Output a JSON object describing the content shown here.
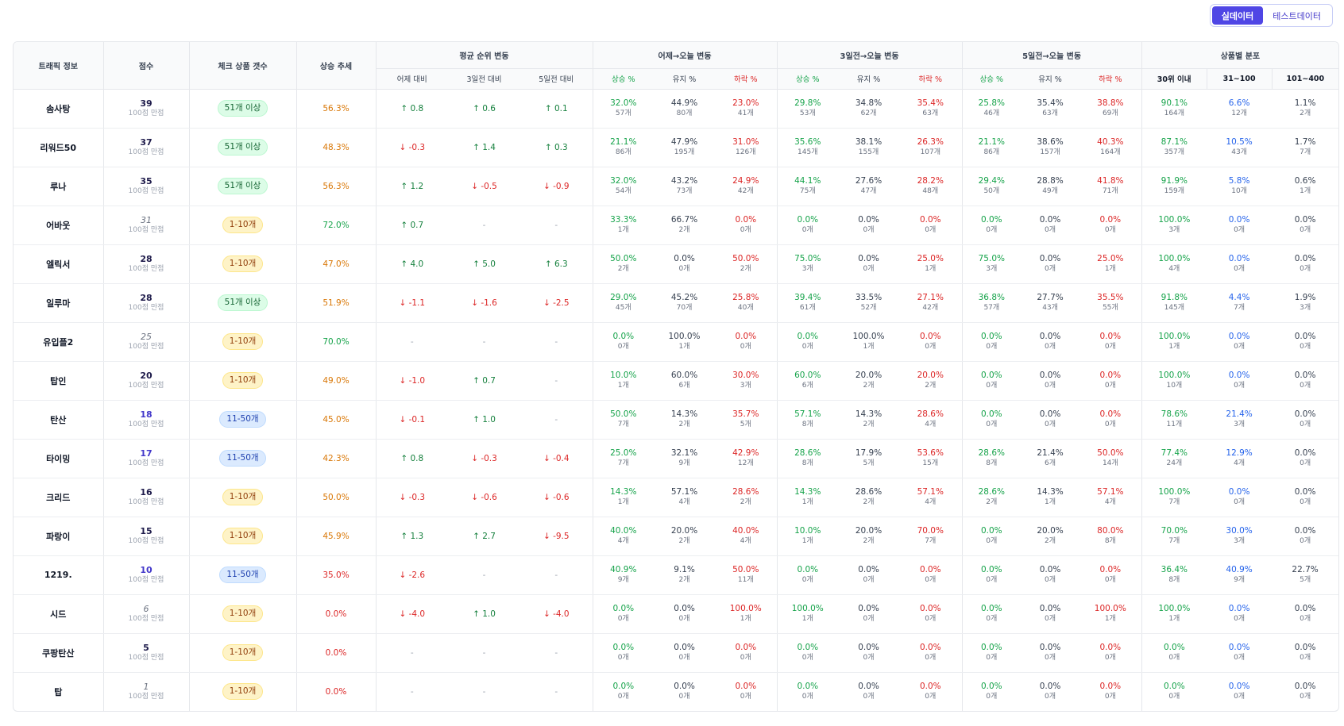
{
  "toggle": {
    "real_label": "실데이터",
    "test_label": "테스트데이터"
  },
  "headers": {
    "traffic": "트래픽 정보",
    "score": "점수",
    "check_count": "체크 상품 갯수",
    "trend": "상승 추세",
    "avg_rank": "평균 순위 변동",
    "yesterday_today": "어제→오늘 변동",
    "d3_today": "3일전→오늘 변동",
    "d5_today": "5일전→오늘 변동",
    "dist": "상품별 분포",
    "vs_yesterday": "어제 대비",
    "vs_3d": "3일전 대비",
    "vs_5d": "5일전 대비",
    "up_pct": "상승 %",
    "keep_pct": "유지 %",
    "down_pct": "하락 %",
    "within30": "30위 이내",
    "r31_100": "31~100",
    "r101_400": "101~400"
  },
  "score_sub": "100점 만점",
  "colors": {
    "accent": "#4f46e5",
    "up": "#16a34a",
    "down": "#dc2626",
    "trend": "#d97706"
  },
  "rows": [
    {
      "name": "솜사탕",
      "score": "39",
      "score_style": "navy",
      "count": "51개 이상",
      "pill": "green",
      "trend": "56.3%",
      "trend_color": "orange",
      "r1": "↑ 0.8",
      "r1d": "up",
      "r3": "↑ 0.6",
      "r3d": "up",
      "r5": "↑ 0.1",
      "r5d": "up",
      "y": [
        [
          "32.0%",
          "57개"
        ],
        [
          "44.9%",
          "80개"
        ],
        [
          "23.0%",
          "41개"
        ]
      ],
      "d3": [
        [
          "29.8%",
          "53개"
        ],
        [
          "34.8%",
          "62개"
        ],
        [
          "35.4%",
          "63개"
        ]
      ],
      "d5": [
        [
          "25.8%",
          "46개"
        ],
        [
          "35.4%",
          "63개"
        ],
        [
          "38.8%",
          "69개"
        ]
      ],
      "dist": [
        [
          "90.1%",
          "164개"
        ],
        [
          "6.6%",
          "12개"
        ],
        [
          "1.1%",
          "2개"
        ]
      ]
    },
    {
      "name": "리워드50",
      "score": "37",
      "score_style": "navy",
      "count": "51개 이상",
      "pill": "green",
      "trend": "48.3%",
      "trend_color": "orange",
      "r1": "↓ -0.3",
      "r1d": "dn",
      "r3": "↑ 1.4",
      "r3d": "up",
      "r5": "↑ 0.3",
      "r5d": "up",
      "y": [
        [
          "21.1%",
          "86개"
        ],
        [
          "47.9%",
          "195개"
        ],
        [
          "31.0%",
          "126개"
        ]
      ],
      "d3": [
        [
          "35.6%",
          "145개"
        ],
        [
          "38.1%",
          "155개"
        ],
        [
          "26.3%",
          "107개"
        ]
      ],
      "d5": [
        [
          "21.1%",
          "86개"
        ],
        [
          "38.6%",
          "157개"
        ],
        [
          "40.3%",
          "164개"
        ]
      ],
      "dist": [
        [
          "87.1%",
          "357개"
        ],
        [
          "10.5%",
          "43개"
        ],
        [
          "1.7%",
          "7개"
        ]
      ]
    },
    {
      "name": "루나",
      "score": "35",
      "score_style": "navy",
      "count": "51개 이상",
      "pill": "green",
      "trend": "56.3%",
      "trend_color": "orange",
      "r1": "↑ 1.2",
      "r1d": "up",
      "r3": "↓ -0.5",
      "r3d": "dn",
      "r5": "↓ -0.9",
      "r5d": "dn",
      "y": [
        [
          "32.0%",
          "54개"
        ],
        [
          "43.2%",
          "73개"
        ],
        [
          "24.9%",
          "42개"
        ]
      ],
      "d3": [
        [
          "44.1%",
          "75개"
        ],
        [
          "27.6%",
          "47개"
        ],
        [
          "28.2%",
          "48개"
        ]
      ],
      "d5": [
        [
          "29.4%",
          "50개"
        ],
        [
          "28.8%",
          "49개"
        ],
        [
          "41.8%",
          "71개"
        ]
      ],
      "dist": [
        [
          "91.9%",
          "159개"
        ],
        [
          "5.8%",
          "10개"
        ],
        [
          "0.6%",
          "1개"
        ]
      ]
    },
    {
      "name": "어바웃",
      "score": "31",
      "score_style": "gray",
      "count": "1-10개",
      "pill": "yellow",
      "trend": "72.0%",
      "trend_color": "green",
      "r1": "↑ 0.7",
      "r1d": "up",
      "r3": "-",
      "r3d": "none",
      "r5": "-",
      "r5d": "none",
      "y": [
        [
          "33.3%",
          "1개"
        ],
        [
          "66.7%",
          "2개"
        ],
        [
          "0.0%",
          "0개"
        ]
      ],
      "d3": [
        [
          "0.0%",
          "0개"
        ],
        [
          "0.0%",
          "0개"
        ],
        [
          "0.0%",
          "0개"
        ]
      ],
      "d5": [
        [
          "0.0%",
          "0개"
        ],
        [
          "0.0%",
          "0개"
        ],
        [
          "0.0%",
          "0개"
        ]
      ],
      "dist": [
        [
          "100.0%",
          "3개"
        ],
        [
          "0.0%",
          "0개"
        ],
        [
          "0.0%",
          "0개"
        ]
      ]
    },
    {
      "name": "엘릭서",
      "score": "28",
      "score_style": "navy",
      "count": "1-10개",
      "pill": "yellow",
      "trend": "47.0%",
      "trend_color": "orange",
      "r1": "↑ 4.0",
      "r1d": "up",
      "r3": "↑ 5.0",
      "r3d": "up",
      "r5": "↑ 6.3",
      "r5d": "up",
      "y": [
        [
          "50.0%",
          "2개"
        ],
        [
          "0.0%",
          "0개"
        ],
        [
          "50.0%",
          "2개"
        ]
      ],
      "d3": [
        [
          "75.0%",
          "3개"
        ],
        [
          "0.0%",
          "0개"
        ],
        [
          "25.0%",
          "1개"
        ]
      ],
      "d5": [
        [
          "75.0%",
          "3개"
        ],
        [
          "0.0%",
          "0개"
        ],
        [
          "25.0%",
          "1개"
        ]
      ],
      "dist": [
        [
          "100.0%",
          "4개"
        ],
        [
          "0.0%",
          "0개"
        ],
        [
          "0.0%",
          "0개"
        ]
      ]
    },
    {
      "name": "일루마",
      "score": "28",
      "score_style": "navy",
      "count": "51개 이상",
      "pill": "green",
      "trend": "51.9%",
      "trend_color": "orange",
      "r1": "↓ -1.1",
      "r1d": "dn",
      "r3": "↓ -1.6",
      "r3d": "dn",
      "r5": "↓ -2.5",
      "r5d": "dn",
      "y": [
        [
          "29.0%",
          "45개"
        ],
        [
          "45.2%",
          "70개"
        ],
        [
          "25.8%",
          "40개"
        ]
      ],
      "d3": [
        [
          "39.4%",
          "61개"
        ],
        [
          "33.5%",
          "52개"
        ],
        [
          "27.1%",
          "42개"
        ]
      ],
      "d5": [
        [
          "36.8%",
          "57개"
        ],
        [
          "27.7%",
          "43개"
        ],
        [
          "35.5%",
          "55개"
        ]
      ],
      "dist": [
        [
          "91.8%",
          "145개"
        ],
        [
          "4.4%",
          "7개"
        ],
        [
          "1.9%",
          "3개"
        ]
      ]
    },
    {
      "name": "유입플2",
      "score": "25",
      "score_style": "gray",
      "count": "1-10개",
      "pill": "yellow",
      "trend": "70.0%",
      "trend_color": "green",
      "r1": "-",
      "r1d": "none",
      "r3": "-",
      "r3d": "none",
      "r5": "-",
      "r5d": "none",
      "y": [
        [
          "0.0%",
          "0개"
        ],
        [
          "100.0%",
          "1개"
        ],
        [
          "0.0%",
          "0개"
        ]
      ],
      "d3": [
        [
          "0.0%",
          "0개"
        ],
        [
          "100.0%",
          "1개"
        ],
        [
          "0.0%",
          "0개"
        ]
      ],
      "d5": [
        [
          "0.0%",
          "0개"
        ],
        [
          "0.0%",
          "0개"
        ],
        [
          "0.0%",
          "0개"
        ]
      ],
      "dist": [
        [
          "100.0%",
          "1개"
        ],
        [
          "0.0%",
          "0개"
        ],
        [
          "0.0%",
          "0개"
        ]
      ]
    },
    {
      "name": "탑인",
      "score": "20",
      "score_style": "navy",
      "count": "1-10개",
      "pill": "yellow",
      "trend": "49.0%",
      "trend_color": "orange",
      "r1": "↓ -1.0",
      "r1d": "dn",
      "r3": "↑ 0.7",
      "r3d": "up",
      "r5": "-",
      "r5d": "none",
      "y": [
        [
          "10.0%",
          "1개"
        ],
        [
          "60.0%",
          "6개"
        ],
        [
          "30.0%",
          "3개"
        ]
      ],
      "d3": [
        [
          "60.0%",
          "6개"
        ],
        [
          "20.0%",
          "2개"
        ],
        [
          "20.0%",
          "2개"
        ]
      ],
      "d5": [
        [
          "0.0%",
          "0개"
        ],
        [
          "0.0%",
          "0개"
        ],
        [
          "0.0%",
          "0개"
        ]
      ],
      "dist": [
        [
          "100.0%",
          "10개"
        ],
        [
          "0.0%",
          "0개"
        ],
        [
          "0.0%",
          "0개"
        ]
      ]
    },
    {
      "name": "탄산",
      "score": "18",
      "score_style": "blue",
      "count": "11-50개",
      "pill": "blue",
      "trend": "45.0%",
      "trend_color": "orange",
      "r1": "↓ -0.1",
      "r1d": "dn",
      "r3": "↑ 1.0",
      "r3d": "up",
      "r5": "-",
      "r5d": "none",
      "y": [
        [
          "50.0%",
          "7개"
        ],
        [
          "14.3%",
          "2개"
        ],
        [
          "35.7%",
          "5개"
        ]
      ],
      "d3": [
        [
          "57.1%",
          "8개"
        ],
        [
          "14.3%",
          "2개"
        ],
        [
          "28.6%",
          "4개"
        ]
      ],
      "d5": [
        [
          "0.0%",
          "0개"
        ],
        [
          "0.0%",
          "0개"
        ],
        [
          "0.0%",
          "0개"
        ]
      ],
      "dist": [
        [
          "78.6%",
          "11개"
        ],
        [
          "21.4%",
          "3개"
        ],
        [
          "0.0%",
          "0개"
        ]
      ]
    },
    {
      "name": "타이밍",
      "score": "17",
      "score_style": "blue",
      "count": "11-50개",
      "pill": "blue",
      "trend": "42.3%",
      "trend_color": "orange",
      "r1": "↑ 0.8",
      "r1d": "up",
      "r3": "↓ -0.3",
      "r3d": "dn",
      "r5": "↓ -0.4",
      "r5d": "dn",
      "y": [
        [
          "25.0%",
          "7개"
        ],
        [
          "32.1%",
          "9개"
        ],
        [
          "42.9%",
          "12개"
        ]
      ],
      "d3": [
        [
          "28.6%",
          "8개"
        ],
        [
          "17.9%",
          "5개"
        ],
        [
          "53.6%",
          "15개"
        ]
      ],
      "d5": [
        [
          "28.6%",
          "8개"
        ],
        [
          "21.4%",
          "6개"
        ],
        [
          "50.0%",
          "14개"
        ]
      ],
      "dist": [
        [
          "77.4%",
          "24개"
        ],
        [
          "12.9%",
          "4개"
        ],
        [
          "0.0%",
          "0개"
        ]
      ]
    },
    {
      "name": "크리드",
      "score": "16",
      "score_style": "navy",
      "count": "1-10개",
      "pill": "yellow",
      "trend": "50.0%",
      "trend_color": "orange",
      "r1": "↓ -0.3",
      "r1d": "dn",
      "r3": "↓ -0.6",
      "r3d": "dn",
      "r5": "↓ -0.6",
      "r5d": "dn",
      "y": [
        [
          "14.3%",
          "1개"
        ],
        [
          "57.1%",
          "4개"
        ],
        [
          "28.6%",
          "2개"
        ]
      ],
      "d3": [
        [
          "14.3%",
          "1개"
        ],
        [
          "28.6%",
          "2개"
        ],
        [
          "57.1%",
          "4개"
        ]
      ],
      "d5": [
        [
          "28.6%",
          "2개"
        ],
        [
          "14.3%",
          "1개"
        ],
        [
          "57.1%",
          "4개"
        ]
      ],
      "dist": [
        [
          "100.0%",
          "7개"
        ],
        [
          "0.0%",
          "0개"
        ],
        [
          "0.0%",
          "0개"
        ]
      ]
    },
    {
      "name": "파랑이",
      "score": "15",
      "score_style": "navy",
      "count": "1-10개",
      "pill": "yellow",
      "trend": "45.9%",
      "trend_color": "orange",
      "r1": "↑ 1.3",
      "r1d": "up",
      "r3": "↑ 2.7",
      "r3d": "up",
      "r5": "↓ -9.5",
      "r5d": "dn",
      "y": [
        [
          "40.0%",
          "4개"
        ],
        [
          "20.0%",
          "2개"
        ],
        [
          "40.0%",
          "4개"
        ]
      ],
      "d3": [
        [
          "10.0%",
          "1개"
        ],
        [
          "20.0%",
          "2개"
        ],
        [
          "70.0%",
          "7개"
        ]
      ],
      "d5": [
        [
          "0.0%",
          "0개"
        ],
        [
          "20.0%",
          "2개"
        ],
        [
          "80.0%",
          "8개"
        ]
      ],
      "dist": [
        [
          "70.0%",
          "7개"
        ],
        [
          "30.0%",
          "3개"
        ],
        [
          "0.0%",
          "0개"
        ]
      ]
    },
    {
      "name": "1219.",
      "score": "10",
      "score_style": "blue",
      "count": "11-50개",
      "pill": "blue",
      "trend": "35.0%",
      "trend_color": "red",
      "r1": "↓ -2.6",
      "r1d": "dn",
      "r3": "-",
      "r3d": "none",
      "r5": "-",
      "r5d": "none",
      "y": [
        [
          "40.9%",
          "9개"
        ],
        [
          "9.1%",
          "2개"
        ],
        [
          "50.0%",
          "11개"
        ]
      ],
      "d3": [
        [
          "0.0%",
          "0개"
        ],
        [
          "0.0%",
          "0개"
        ],
        [
          "0.0%",
          "0개"
        ]
      ],
      "d5": [
        [
          "0.0%",
          "0개"
        ],
        [
          "0.0%",
          "0개"
        ],
        [
          "0.0%",
          "0개"
        ]
      ],
      "dist": [
        [
          "36.4%",
          "8개"
        ],
        [
          "40.9%",
          "9개"
        ],
        [
          "22.7%",
          "5개"
        ]
      ]
    },
    {
      "name": "시드",
      "score": "6",
      "score_style": "gray",
      "count": "1-10개",
      "pill": "yellow",
      "trend": "0.0%",
      "trend_color": "red",
      "r1": "↓ -4.0",
      "r1d": "dn",
      "r3": "↑ 1.0",
      "r3d": "up",
      "r5": "↓ -4.0",
      "r5d": "dn",
      "y": [
        [
          "0.0%",
          "0개"
        ],
        [
          "0.0%",
          "0개"
        ],
        [
          "100.0%",
          "1개"
        ]
      ],
      "d3": [
        [
          "100.0%",
          "1개"
        ],
        [
          "0.0%",
          "0개"
        ],
        [
          "0.0%",
          "0개"
        ]
      ],
      "d5": [
        [
          "0.0%",
          "0개"
        ],
        [
          "0.0%",
          "0개"
        ],
        [
          "100.0%",
          "1개"
        ]
      ],
      "dist": [
        [
          "100.0%",
          "1개"
        ],
        [
          "0.0%",
          "0개"
        ],
        [
          "0.0%",
          "0개"
        ]
      ]
    },
    {
      "name": "쿠팡탄산",
      "score": "5",
      "score_style": "navy",
      "count": "1-10개",
      "pill": "yellow",
      "trend": "0.0%",
      "trend_color": "red",
      "r1": "-",
      "r1d": "none",
      "r3": "-",
      "r3d": "none",
      "r5": "-",
      "r5d": "none",
      "y": [
        [
          "0.0%",
          "0개"
        ],
        [
          "0.0%",
          "0개"
        ],
        [
          "0.0%",
          "0개"
        ]
      ],
      "d3": [
        [
          "0.0%",
          "0개"
        ],
        [
          "0.0%",
          "0개"
        ],
        [
          "0.0%",
          "0개"
        ]
      ],
      "d5": [
        [
          "0.0%",
          "0개"
        ],
        [
          "0.0%",
          "0개"
        ],
        [
          "0.0%",
          "0개"
        ]
      ],
      "dist": [
        [
          "0.0%",
          "0개"
        ],
        [
          "0.0%",
          "0개"
        ],
        [
          "0.0%",
          "0개"
        ]
      ]
    },
    {
      "name": "탑",
      "score": "1",
      "score_style": "gray",
      "count": "1-10개",
      "pill": "yellow",
      "trend": "0.0%",
      "trend_color": "red",
      "r1": "-",
      "r1d": "none",
      "r3": "-",
      "r3d": "none",
      "r5": "-",
      "r5d": "none",
      "y": [
        [
          "0.0%",
          "0개"
        ],
        [
          "0.0%",
          "0개"
        ],
        [
          "0.0%",
          "0개"
        ]
      ],
      "d3": [
        [
          "0.0%",
          "0개"
        ],
        [
          "0.0%",
          "0개"
        ],
        [
          "0.0%",
          "0개"
        ]
      ],
      "d5": [
        [
          "0.0%",
          "0개"
        ],
        [
          "0.0%",
          "0개"
        ],
        [
          "0.0%",
          "0개"
        ]
      ],
      "dist": [
        [
          "0.0%",
          "0개"
        ],
        [
          "0.0%",
          "0개"
        ],
        [
          "0.0%",
          "0개"
        ]
      ]
    }
  ]
}
